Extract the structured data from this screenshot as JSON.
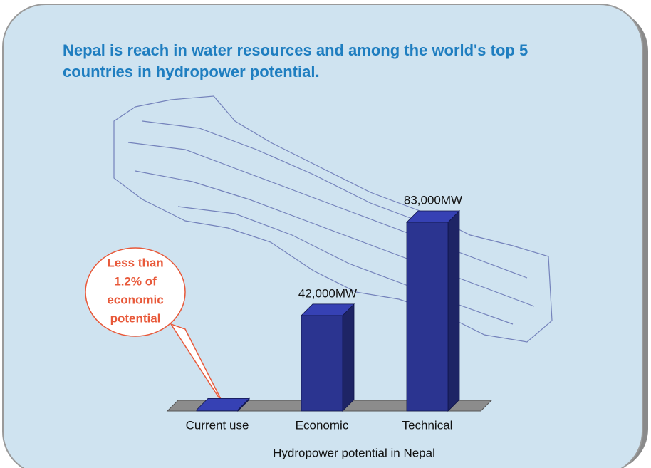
{
  "chart_data": {
    "type": "bar",
    "title": "Nepal is reach in water resources and among the world's top 5 countries in hydropower potential.",
    "x_label": "Hydropower potential in Nepal",
    "categories": [
      "Current use",
      "Economic",
      "Technical"
    ],
    "values": [
      500,
      42000,
      83000
    ],
    "value_labels": [
      null,
      "42,000MW",
      "83,000MW"
    ],
    "color": "#2b3490",
    "annotation": [
      "Less than",
      "1.2% of",
      "economic",
      "potential"
    ]
  }
}
